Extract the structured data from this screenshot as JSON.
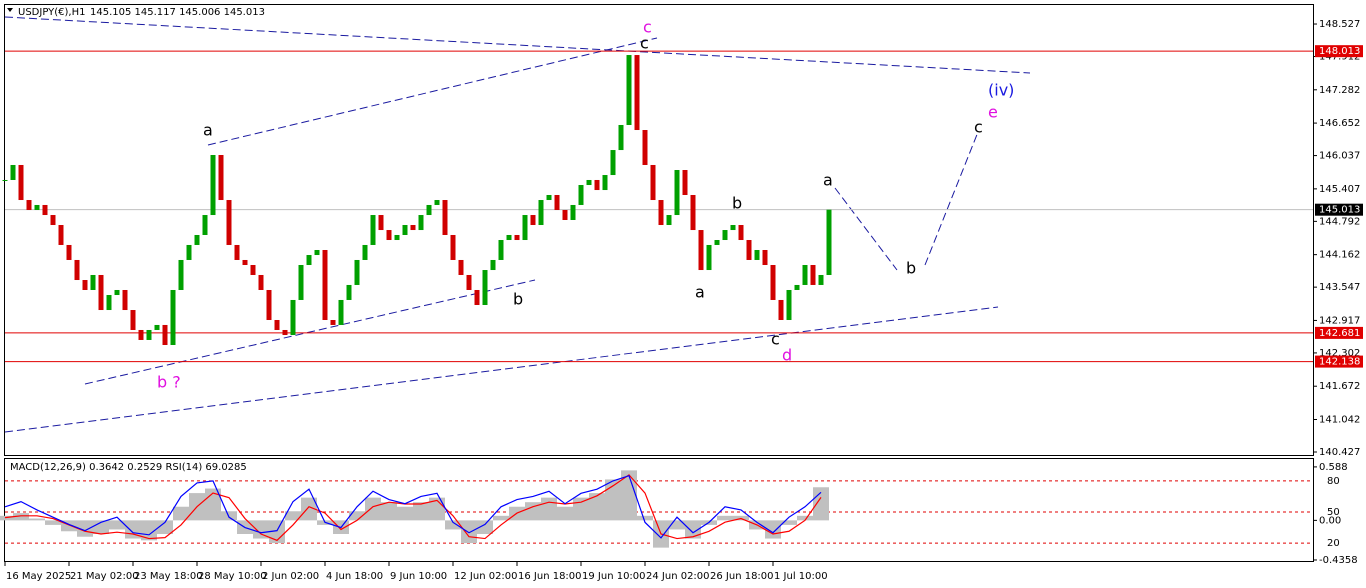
{
  "chart_data": [
    {
      "type": "candlestick",
      "title": "USDJPY(€),H1",
      "subtitle": "145.105 145.117 145.006 145.013",
      "categories": [
        "16 May 2025",
        null,
        null,
        null,
        null,
        null,
        null,
        null,
        "21 May 02:00",
        null,
        null,
        null,
        null,
        null,
        null,
        null,
        "23 May 18:00",
        null,
        null,
        null,
        null,
        null,
        null,
        null,
        "28 May 10:00",
        null,
        null,
        null,
        null,
        null,
        null,
        null,
        "2 Jun 02:00",
        null,
        null,
        null,
        null,
        null,
        null,
        null,
        "4 Jun 18:00",
        null,
        null,
        null,
        null,
        null,
        null,
        null,
        "9 Jun 10:00",
        null,
        null,
        null,
        null,
        null,
        null,
        null,
        "12 Jun 02:00",
        null,
        null,
        null,
        null,
        null,
        null,
        null,
        "16 Jun 18:00",
        null,
        null,
        null,
        null,
        null,
        null,
        null,
        "19 Jun 10:00",
        null,
        null,
        null,
        null,
        null,
        null,
        null,
        "24 Jun 02:00",
        null,
        null,
        null,
        null,
        null,
        null,
        null,
        "26 Jun 18:00",
        null,
        null,
        null,
        null,
        null,
        null,
        null,
        "1 Jul 10:00",
        null,
        null,
        null,
        null,
        null,
        null,
        null
      ],
      "values": [
        145.575,
        145.859,
        145.196,
        145.007,
        145.102,
        144.912,
        144.723,
        144.345,
        144.061,
        143.682,
        143.493,
        143.777,
        143.114,
        143.398,
        143.493,
        143.114,
        142.736,
        142.547,
        142.736,
        142.831,
        142.452,
        143.493,
        144.061,
        144.345,
        144.534,
        144.912,
        146.048,
        145.196,
        144.345,
        144.061,
        143.966,
        143.777,
        143.493,
        142.925,
        142.736,
        142.641,
        143.304,
        143.966,
        144.155,
        144.25,
        142.925,
        142.831,
        143.304,
        143.588,
        144.061,
        144.345,
        144.912,
        144.628,
        144.439,
        144.534,
        144.723,
        144.628,
        144.912,
        145.102,
        145.196,
        144.534,
        144.061,
        143.777,
        143.493,
        143.209,
        143.871,
        144.061,
        144.439,
        144.534,
        144.439,
        144.912,
        144.723,
        145.196,
        145.291,
        145.007,
        144.818,
        145.102,
        145.48,
        145.575,
        145.385,
        145.669,
        146.142,
        146.616,
        147.94,
        146.521,
        145.859,
        145.196,
        144.723,
        144.912,
        145.764,
        145.291,
        144.628,
        143.871,
        144.345,
        144.439,
        144.628,
        144.723,
        144.439,
        144.061,
        144.25,
        143.966,
        143.304,
        142.925,
        143.493,
        143.588,
        143.966,
        143.588,
        143.777,
        145.013
      ],
      "up_color": "#00a000",
      "down_color": "#d00000",
      "ylim": [
        140.37,
        148.887
      ],
      "yticks": [
        148.527,
        147.912,
        147.282,
        146.652,
        146.037,
        145.407,
        144.792,
        144.162,
        143.547,
        142.917,
        142.302,
        141.672,
        141.042,
        140.427
      ],
      "levels": [
        {
          "value": 148.013,
          "color": "#e00000"
        },
        {
          "value": 142.681,
          "color": "#e00000"
        },
        {
          "value": 142.138,
          "color": "#e00000"
        }
      ],
      "last_price": 145.013,
      "annotations": [
        "c",
        "c",
        "a",
        "b ?",
        "b",
        "a",
        "b",
        "c",
        "d",
        "a",
        "b",
        "c",
        "e",
        "(iv)"
      ]
    },
    {
      "type": "indicator",
      "title": "MACD(12,26,9) 0.3642 0.2529  RSI(14) 69.0285",
      "series": [
        {
          "color": "#c0c0c0",
          "values": [
            0.05,
            0.08,
            0.02,
            -0.05,
            -0.12,
            -0.18,
            -0.15,
            -0.1,
            -0.2,
            -0.22,
            -0.15,
            0.15,
            0.3,
            0.35,
            0.1,
            -0.15,
            -0.2,
            -0.25,
            0.1,
            0.25,
            -0.05,
            -0.15,
            0.1,
            0.25,
            0.2,
            0.15,
            0.2,
            0.25,
            -0.1,
            -0.25,
            -0.15,
            0.05,
            0.15,
            0.2,
            0.25,
            0.15,
            0.25,
            0.3,
            0.45,
            0.55,
            0.05,
            -0.3,
            -0.1,
            -0.2,
            -0.05,
            0.05,
            0.05,
            -0.1,
            -0.2,
            -0.05,
            0.05,
            0.3642
          ]
        },
        {
          "color": "#ff0000",
          "values": [
            0.03,
            0.05,
            0.05,
            0.02,
            -0.05,
            -0.12,
            -0.15,
            -0.13,
            -0.15,
            -0.2,
            -0.19,
            -0.05,
            0.15,
            0.3,
            0.25,
            0.02,
            -0.15,
            -0.22,
            -0.05,
            0.15,
            0.08,
            -0.1,
            0,
            0.15,
            0.2,
            0.18,
            0.18,
            0.22,
            0.05,
            -0.18,
            -0.2,
            -0.05,
            0.08,
            0.15,
            0.2,
            0.18,
            0.2,
            0.27,
            0.38,
            0.5,
            0.3,
            -0.15,
            -0.2,
            -0.18,
            -0.12,
            -0.02,
            0.02,
            -0.05,
            -0.15,
            -0.12,
            0,
            0.2529
          ]
        },
        {
          "color": "#0000ff",
          "axis": "y2",
          "values": [
            55,
            60,
            52,
            45,
            38,
            32,
            40,
            45,
            30,
            28,
            40,
            65,
            78,
            80,
            45,
            35,
            30,
            32,
            60,
            72,
            40,
            35,
            55,
            70,
            62,
            58,
            65,
            68,
            40,
            30,
            38,
            55,
            62,
            65,
            70,
            58,
            68,
            72,
            80,
            85,
            40,
            25,
            45,
            30,
            40,
            55,
            52,
            40,
            30,
            45,
            55,
            69.0285
          ]
        }
      ],
      "ylim": [
        -0.436,
        0.675
      ],
      "yticks": [
        0.588,
        {
          "value": 0,
          "label": "0.00"
        },
        -0.4358
      ],
      "y2lim": [
        3.7,
        101.1
      ],
      "y2ticks": [
        80,
        50,
        20
      ]
    }
  ]
}
